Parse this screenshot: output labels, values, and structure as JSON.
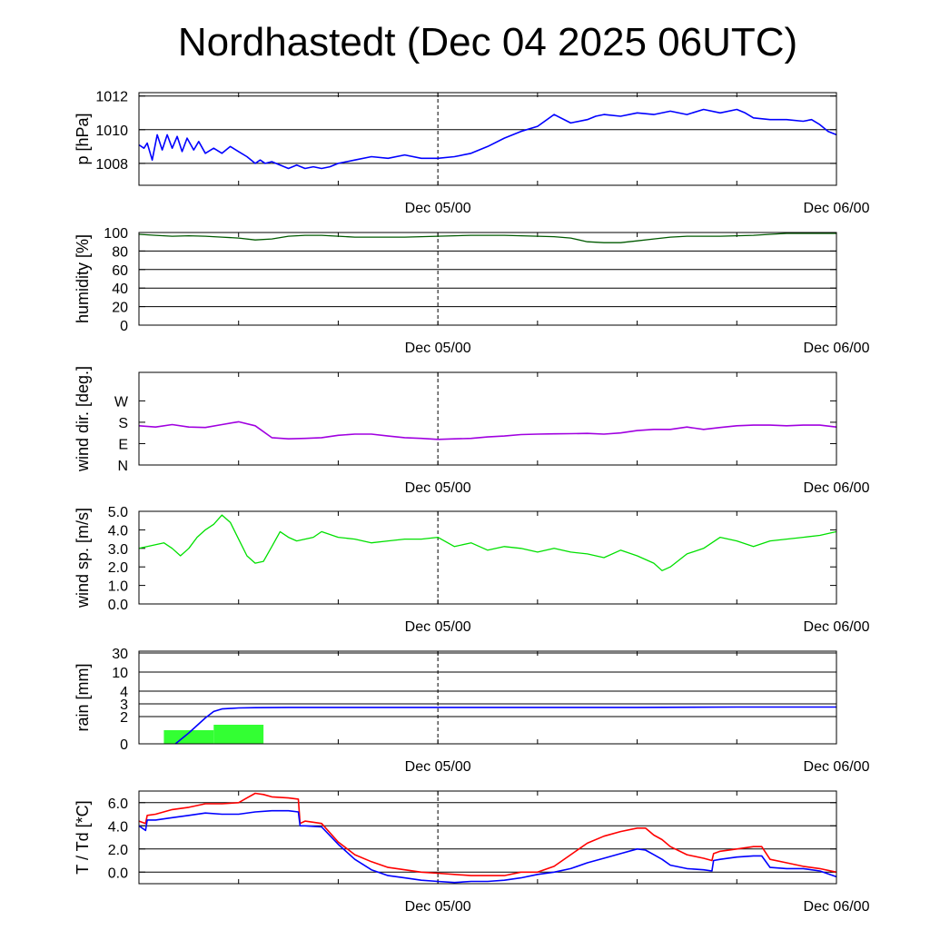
{
  "title": "Nordhastedt (Dec 04 2025 06UTC)",
  "colors": {
    "pressure": "#0000ff",
    "humidity": "#005a00",
    "wind_dir": "#a000e0",
    "wind_speed": "#00e000",
    "rain_bar": "#33ff33",
    "rain_line": "#0000ff",
    "temperature": "#ff0000",
    "dewpoint": "#0000ff"
  },
  "chart_data": [
    {
      "type": "line",
      "ylabel": "p [hPa]",
      "ylim": [
        1006.7,
        1012.2
      ],
      "yticks": [
        1008,
        1010,
        1012
      ],
      "ytick_labels": [
        "1008",
        "1010",
        "1012"
      ],
      "xlim": [
        0,
        42
      ],
      "xlabels": [
        {
          "x": 18,
          "label": "Dec 05/00"
        },
        {
          "x": 42,
          "label": "Dec 06/00"
        }
      ],
      "grid": true,
      "series": [
        {
          "color_key": "pressure",
          "x": [
            0,
            0.3,
            0.5,
            0.8,
            1.1,
            1.4,
            1.7,
            2.0,
            2.3,
            2.6,
            2.9,
            3.3,
            3.6,
            4.0,
            4.5,
            5,
            5.5,
            6,
            6.5,
            7,
            7.3,
            7.6,
            8,
            8.5,
            9,
            9.5,
            10,
            10.5,
            11,
            11.5,
            12,
            13,
            14,
            15,
            16,
            17,
            18,
            19,
            20,
            21,
            22,
            23,
            24,
            25,
            26,
            27,
            27.5,
            28,
            29,
            30,
            31,
            32,
            33,
            34,
            35,
            36,
            36.5,
            37,
            38,
            39,
            40,
            40.5,
            41,
            41.5,
            42
          ],
          "values": [
            1009.1,
            1008.9,
            1009.2,
            1008.2,
            1009.7,
            1008.8,
            1009.7,
            1008.9,
            1009.6,
            1008.7,
            1009.5,
            1008.8,
            1009.3,
            1008.6,
            1008.9,
            1008.6,
            1009.0,
            1008.7,
            1008.4,
            1008.0,
            1008.2,
            1008.0,
            1008.1,
            1007.9,
            1007.7,
            1007.9,
            1007.7,
            1007.8,
            1007.7,
            1007.8,
            1008.0,
            1008.2,
            1008.4,
            1008.3,
            1008.5,
            1008.3,
            1008.3,
            1008.4,
            1008.6,
            1009.0,
            1009.5,
            1009.9,
            1010.2,
            1010.9,
            1010.4,
            1010.6,
            1010.8,
            1010.9,
            1010.8,
            1011.0,
            1010.9,
            1011.1,
            1010.9,
            1011.2,
            1011.0,
            1011.2,
            1011.0,
            1010.7,
            1010.6,
            1010.6,
            1010.5,
            1010.6,
            1010.3,
            1009.9,
            1009.7
          ]
        }
      ]
    },
    {
      "type": "line",
      "ylabel": "humidity [%]",
      "ylim": [
        0,
        100
      ],
      "yticks": [
        0,
        20,
        40,
        60,
        80,
        100
      ],
      "ytick_labels": [
        "0",
        "20",
        "40",
        "60",
        "80",
        "100"
      ],
      "xlim": [
        0,
        42
      ],
      "xlabels": [
        {
          "x": 18,
          "label": "Dec 05/00"
        },
        {
          "x": 42,
          "label": "Dec 06/00"
        }
      ],
      "grid": true,
      "series": [
        {
          "color_key": "humidity",
          "x": [
            0,
            1,
            2,
            3,
            4,
            5,
            6,
            7,
            8,
            9,
            10,
            11,
            12,
            13,
            14,
            15,
            16,
            17,
            18,
            19,
            20,
            21,
            22,
            23,
            24,
            25,
            26,
            27,
            28,
            29,
            29.5,
            30,
            31,
            32,
            33,
            34,
            35,
            36,
            37,
            38,
            39,
            40,
            41,
            42
          ],
          "values": [
            98,
            97,
            96,
            96.5,
            96,
            95,
            94,
            92,
            93,
            96,
            97,
            97,
            96,
            95,
            95,
            95,
            95,
            95.5,
            96,
            96.5,
            97,
            97,
            97,
            96.5,
            96,
            95.5,
            94,
            90,
            89,
            89,
            90,
            91,
            93,
            95,
            96,
            96,
            96,
            96.5,
            97,
            98,
            99,
            99,
            99,
            99
          ]
        }
      ]
    },
    {
      "type": "line",
      "ylabel": "wind dir. [deg.]",
      "ylim": [
        0,
        390
      ],
      "yticks": [
        0,
        90,
        180,
        270
      ],
      "ytick_labels": [
        "N",
        "E",
        "S",
        "W"
      ],
      "xlim": [
        0,
        42
      ],
      "xlabels": [
        {
          "x": 18,
          "label": "Dec 05/00"
        },
        {
          "x": 42,
          "label": "Dec 06/00"
        }
      ],
      "grid": false,
      "series": [
        {
          "color_key": "wind_dir",
          "x": [
            0,
            1,
            2,
            3,
            4,
            5,
            6,
            7,
            8,
            9,
            10,
            11,
            12,
            13,
            14,
            15,
            16,
            17,
            18,
            19,
            20,
            21,
            22,
            23,
            24,
            25,
            26,
            27,
            28,
            29,
            30,
            31,
            32,
            33,
            34,
            35,
            36,
            37,
            38,
            39,
            40,
            41,
            42
          ],
          "values": [
            165,
            160,
            170,
            160,
            158,
            170,
            182,
            165,
            115,
            110,
            112,
            115,
            125,
            130,
            130,
            122,
            115,
            112,
            108,
            110,
            112,
            118,
            122,
            128,
            130,
            131,
            132,
            133,
            130,
            135,
            145,
            150,
            150,
            160,
            150,
            158,
            165,
            168,
            168,
            165,
            168,
            168,
            160
          ]
        }
      ]
    },
    {
      "type": "line",
      "ylabel": "wind sp. [m/s]",
      "ylim": [
        0,
        5
      ],
      "yticks": [
        0,
        1,
        2,
        3,
        4,
        5
      ],
      "ytick_labels": [
        "0.0",
        "1.0",
        "2.0",
        "3.0",
        "4.0",
        "5.0"
      ],
      "xlim": [
        0,
        42
      ],
      "xlabels": [
        {
          "x": 18,
          "label": "Dec 05/00"
        },
        {
          "x": 42,
          "label": "Dec 06/00"
        }
      ],
      "grid": false,
      "series": [
        {
          "color_key": "wind_speed",
          "x": [
            0,
            0.5,
            1,
            1.5,
            2,
            2.5,
            3,
            3.5,
            4,
            4.5,
            5,
            5.5,
            6,
            6.5,
            7,
            7.5,
            8,
            8.5,
            9,
            9.5,
            10,
            10.5,
            11,
            12,
            13,
            14,
            15,
            16,
            17,
            18,
            19,
            20,
            21,
            22,
            23,
            24,
            25,
            26,
            27,
            28,
            29,
            30,
            31,
            31.5,
            32,
            33,
            34,
            35,
            36,
            37,
            38,
            39,
            40,
            41,
            42
          ],
          "values": [
            3.0,
            3.1,
            3.2,
            3.3,
            3.0,
            2.6,
            3.0,
            3.6,
            4.0,
            4.3,
            4.8,
            4.4,
            3.5,
            2.6,
            2.2,
            2.3,
            3.1,
            3.9,
            3.6,
            3.4,
            3.5,
            3.6,
            3.9,
            3.6,
            3.5,
            3.3,
            3.4,
            3.5,
            3.5,
            3.6,
            3.1,
            3.3,
            2.9,
            3.1,
            3.0,
            2.8,
            3.0,
            2.8,
            2.7,
            2.5,
            2.9,
            2.6,
            2.2,
            1.8,
            2.0,
            2.7,
            3.0,
            3.6,
            3.4,
            3.1,
            3.4,
            3.5,
            3.6,
            3.7,
            3.9
          ]
        }
      ]
    },
    {
      "type": "bar",
      "ylabel": "rain [mm]",
      "yticks": [
        0,
        2,
        3,
        4,
        10,
        30
      ],
      "ytick_labels": [
        "0",
        "2",
        "3",
        "4",
        "10",
        "30"
      ],
      "xlim": [
        0,
        42
      ],
      "xlabels": [
        {
          "x": 18,
          "label": "Dec 05/00"
        },
        {
          "x": 42,
          "label": "Dec 06/00"
        }
      ],
      "grid": true,
      "bars": [
        {
          "x0": 1.5,
          "x1": 4.5,
          "value": 1.0
        },
        {
          "x0": 4.5,
          "x1": 7.5,
          "value": 1.4
        }
      ],
      "series": [
        {
          "name": "",
          "color_key": "rain_line",
          "x": [
            2.2,
            3,
            4,
            4.5,
            5,
            6,
            7,
            9,
            12,
            18,
            24,
            30,
            36,
            42
          ],
          "values": [
            0,
            0.8,
            1.9,
            2.4,
            2.6,
            2.68,
            2.7,
            2.72,
            2.72,
            2.72,
            2.72,
            2.72,
            2.75,
            2.75
          ]
        }
      ]
    },
    {
      "type": "line",
      "ylabel": "T / Td [*C]",
      "ylim": [
        -1,
        7
      ],
      "yticks": [
        0,
        2,
        4,
        6
      ],
      "ytick_labels": [
        "0.0",
        "2.0",
        "4.0",
        "6.0"
      ],
      "xlim": [
        0,
        42
      ],
      "xlabels": [
        {
          "x": 18,
          "label": "Dec 05/00"
        },
        {
          "x": 42,
          "label": "Dec 06/00"
        }
      ],
      "grid": true,
      "series": [
        {
          "color_key": "temperature",
          "x": [
            0,
            0.4,
            0.5,
            1,
            2,
            3,
            4,
            5,
            6,
            6.5,
            7,
            7.5,
            8,
            9,
            9.6,
            9.7,
            10,
            11,
            12,
            13,
            14,
            15,
            16,
            17,
            18,
            19,
            20,
            21,
            22,
            23,
            24,
            25,
            26,
            27,
            28,
            29,
            30,
            30.5,
            31,
            31.5,
            32,
            33,
            34,
            34.5,
            34.6,
            35,
            36,
            37,
            37.5,
            38,
            39,
            40,
            41,
            42
          ],
          "values": [
            4.4,
            4.2,
            4.9,
            5.0,
            5.4,
            5.6,
            5.9,
            5.9,
            6.0,
            6.4,
            6.8,
            6.7,
            6.5,
            6.4,
            6.3,
            4.2,
            4.4,
            4.2,
            2.6,
            1.5,
            0.9,
            0.4,
            0.2,
            0.0,
            -0.1,
            -0.2,
            -0.3,
            -0.3,
            -0.3,
            0.0,
            0.0,
            0.5,
            1.5,
            2.5,
            3.1,
            3.5,
            3.8,
            3.8,
            3.2,
            2.8,
            2.2,
            1.5,
            1.2,
            1.0,
            1.6,
            1.8,
            2.0,
            2.2,
            2.2,
            1.1,
            0.8,
            0.5,
            0.3,
            0.0
          ]
        },
        {
          "color_key": "dewpoint",
          "x": [
            0,
            0.4,
            0.5,
            1,
            2,
            3,
            4,
            5,
            6,
            7,
            8,
            9,
            9.6,
            9.7,
            10,
            11,
            12,
            13,
            14,
            15,
            16,
            17,
            18,
            19,
            20,
            21,
            22,
            23,
            24,
            25,
            26,
            27,
            28,
            29,
            30,
            30.5,
            31,
            31.5,
            32,
            33,
            34,
            34.5,
            34.6,
            35,
            36,
            37,
            37.5,
            38,
            39,
            40,
            41,
            42
          ],
          "values": [
            4.0,
            3.6,
            4.5,
            4.5,
            4.7,
            4.9,
            5.1,
            5.0,
            5.0,
            5.2,
            5.3,
            5.3,
            5.2,
            4.0,
            4.0,
            3.9,
            2.4,
            1.1,
            0.2,
            -0.3,
            -0.5,
            -0.7,
            -0.8,
            -0.9,
            -0.8,
            -0.8,
            -0.7,
            -0.5,
            -0.2,
            0.0,
            0.3,
            0.8,
            1.2,
            1.6,
            2.0,
            1.9,
            1.5,
            1.1,
            0.6,
            0.3,
            0.2,
            0.1,
            1.0,
            1.1,
            1.3,
            1.4,
            1.4,
            0.4,
            0.3,
            0.3,
            0.1,
            -0.4
          ]
        }
      ]
    }
  ]
}
